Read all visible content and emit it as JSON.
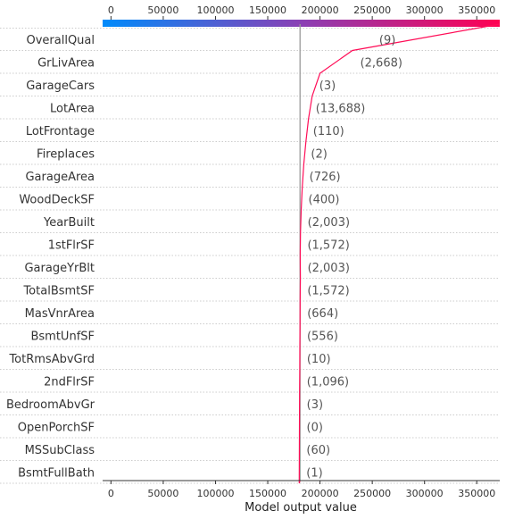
{
  "chart_data": {
    "type": "shap-decision-plot",
    "xlabel": "Model output value",
    "xlim": [
      -8000,
      372000
    ],
    "xticks": [
      0,
      50000,
      100000,
      150000,
      200000,
      250000,
      300000,
      350000
    ],
    "xtick_labels": [
      "0",
      "50000",
      "100000",
      "150000",
      "200000",
      "250000",
      "300000",
      "350000"
    ],
    "base_value": 180900,
    "final_value": 372000,
    "features": [
      {
        "name": "OverallQual",
        "value_label": "(9)",
        "output": 231000
      },
      {
        "name": "GrLivArea",
        "value_label": "(2,668)",
        "output": 200000
      },
      {
        "name": "GarageCars",
        "value_label": "(3)",
        "output": 192500
      },
      {
        "name": "LotArea",
        "value_label": "(13,688)",
        "output": 189000
      },
      {
        "name": "LotFrontage",
        "value_label": "(110)",
        "output": 186500
      },
      {
        "name": "Fireplaces",
        "value_label": "(2)",
        "output": 184500
      },
      {
        "name": "GarageArea",
        "value_label": "(726)",
        "output": 183000
      },
      {
        "name": "WoodDeckSF",
        "value_label": "(400)",
        "output": 182000
      },
      {
        "name": "YearBuilt",
        "value_label": "(2,003)",
        "output": 181300
      },
      {
        "name": "1stFlrSF",
        "value_label": "(1,572)",
        "output": 181100
      },
      {
        "name": "GarageYrBlt",
        "value_label": "(2,003)",
        "output": 181200
      },
      {
        "name": "TotalBsmtSF",
        "value_label": "(1,572)",
        "output": 181000
      },
      {
        "name": "MasVnrArea",
        "value_label": "(664)",
        "output": 180900
      },
      {
        "name": "BsmtUnfSF",
        "value_label": "(556)",
        "output": 180700
      },
      {
        "name": "TotRmsAbvGrd",
        "value_label": "(10)",
        "output": 180600
      },
      {
        "name": "2ndFlrSF",
        "value_label": "(1,096)",
        "output": 180500
      },
      {
        "name": "BedroomAbvGr",
        "value_label": "(3)",
        "output": 180400
      },
      {
        "name": "OpenPorchSF",
        "value_label": "(0)",
        "output": 180300
      },
      {
        "name": "MSSubClass",
        "value_label": "(60)",
        "output": 180200
      },
      {
        "name": "BsmtFullBath",
        "value_label": "(1)",
        "output": 180100
      }
    ],
    "colors": {
      "line": "#ff0d57",
      "base_line": "#999999",
      "grid": "#cccccc",
      "colorbar_start": "#008bfb",
      "colorbar_mid": "#8a3fb4",
      "colorbar_end": "#ff0052"
    }
  }
}
